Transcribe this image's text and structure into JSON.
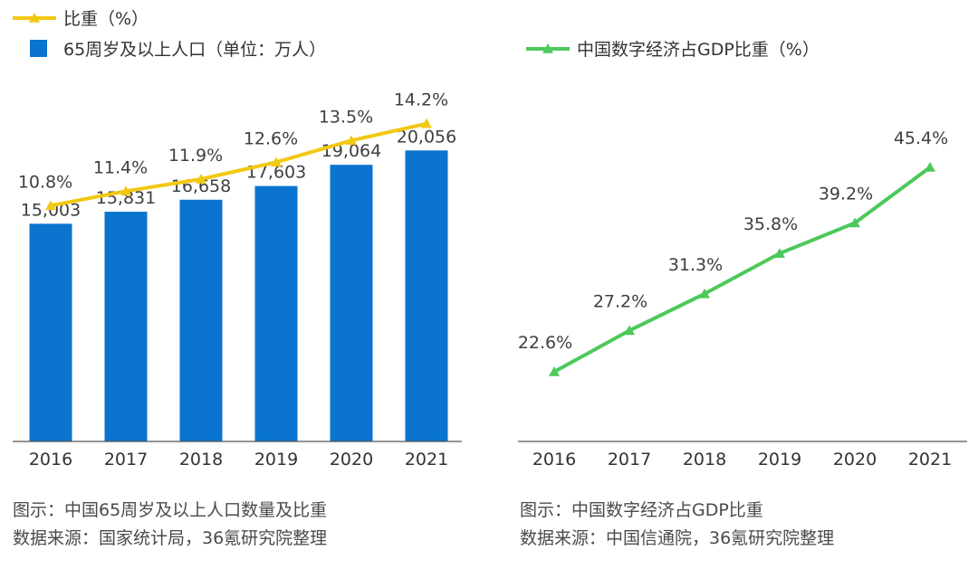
{
  "colors": {
    "bar": "#0a74cf",
    "ratio_line": "#f2c811",
    "digital_line": "#4cc95a",
    "axis": "#555555"
  },
  "chart_data": [
    {
      "type": "bar",
      "title": "",
      "categories": [
        "2016",
        "2017",
        "2018",
        "2019",
        "2020",
        "2021"
      ],
      "series": [
        {
          "name": "65周岁及以上人口（单位：万人）",
          "kind": "bar",
          "values": [
            15003,
            15831,
            16658,
            17603,
            19064,
            20056
          ],
          "labels": [
            "15,003",
            "15,831",
            "16,658",
            "17,603",
            "19,064",
            "20,056"
          ]
        },
        {
          "name": "比重（%）",
          "kind": "line",
          "values": [
            10.8,
            11.4,
            11.9,
            12.6,
            13.5,
            14.2
          ],
          "labels": [
            "10.8%",
            "11.4%",
            "11.9%",
            "12.6%",
            "13.5%",
            "14.2%"
          ]
        }
      ],
      "ylim": [
        0,
        24500
      ],
      "line_ylim": [
        5,
        15.5
      ],
      "caption": "图示：中国65周岁及以上人口数量及比重",
      "source": "数据来源：国家统计局，36氪研究院整理"
    },
    {
      "type": "line",
      "title": "",
      "categories": [
        "2016",
        "2017",
        "2018",
        "2019",
        "2020",
        "2021"
      ],
      "series": [
        {
          "name": "中国数字经济占GDP比重（%）",
          "values": [
            22.6,
            27.2,
            31.3,
            35.8,
            39.2,
            45.4
          ],
          "labels": [
            "22.6%",
            "27.2%",
            "31.3%",
            "35.8%",
            "39.2%",
            "45.4%"
          ]
        }
      ],
      "ylim": [
        0,
        55
      ],
      "caption": "图示：中国数字经济占GDP比重",
      "source": "数据来源：中国信通院，36氪研究院整理"
    }
  ]
}
